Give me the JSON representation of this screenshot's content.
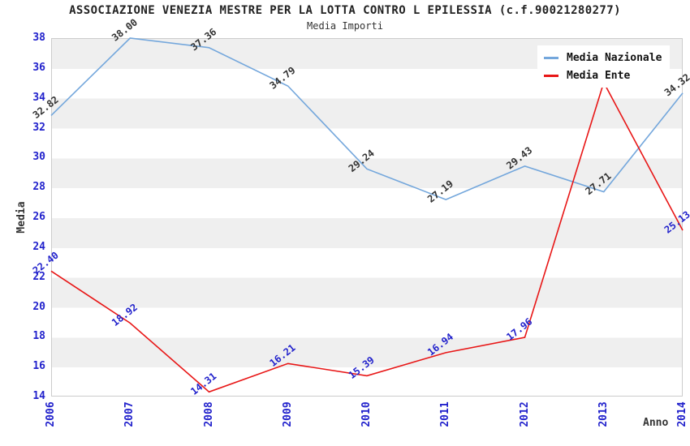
{
  "title": "ASSOCIAZIONE VENEZIA MESTRE PER LA LOTTA CONTRO L EPILESSIA (c.f.90021280277)",
  "subtitle": "Media Importi",
  "legend": [
    {
      "label": "Media Nazionale",
      "color": "#74a7dc"
    },
    {
      "label": "Media Ente",
      "color": "#e81616"
    }
  ],
  "colors": {
    "axis_tick_text": "#2222cc",
    "blue_series_line": "#74a7dc",
    "blue_series_label_text": "#333333",
    "red_series_line": "#e81616",
    "red_series_label_text": "#2222cc",
    "band_fill": "#efefef",
    "plot_border": "#cccccc"
  },
  "chart_data": {
    "type": "line",
    "title": "ASSOCIAZIONE VENEZIA MESTRE PER LA LOTTA CONTRO L EPILESSIA (c.f.90021280277)",
    "subtitle": "Media Importi",
    "xlabel": "Anno",
    "ylabel": "Media",
    "x": [
      "2006",
      "2007",
      "2008",
      "2009",
      "2010",
      "2011",
      "2012",
      "2013",
      "2014"
    ],
    "ylim": [
      14,
      38
    ],
    "yticks": [
      14,
      16,
      18,
      20,
      22,
      24,
      26,
      28,
      30,
      32,
      34,
      36,
      38
    ],
    "grid": "horizontal-bands-every-2-units",
    "legend_position": "top-right",
    "series": [
      {
        "name": "Media Nazionale",
        "color": "#74a7dc",
        "label_color": "#333333",
        "values": [
          32.82,
          38.0,
          37.36,
          34.79,
          29.24,
          27.19,
          29.43,
          27.71,
          34.32
        ],
        "point_labels": [
          "32.82",
          "38.00",
          "37.36",
          "34.79",
          "29.24",
          "27.19",
          "29.43",
          "27.71",
          "34.32"
        ]
      },
      {
        "name": "Media Ente",
        "color": "#e81616",
        "label_color": "#2222cc",
        "values": [
          22.4,
          18.92,
          14.31,
          16.21,
          15.39,
          16.94,
          17.96,
          35.03,
          25.13
        ],
        "point_labels": [
          "22.40",
          "18.92",
          "14.31",
          "16.21",
          "15.39",
          "16.94",
          "17.96",
          "",
          "25.13"
        ]
      }
    ]
  }
}
